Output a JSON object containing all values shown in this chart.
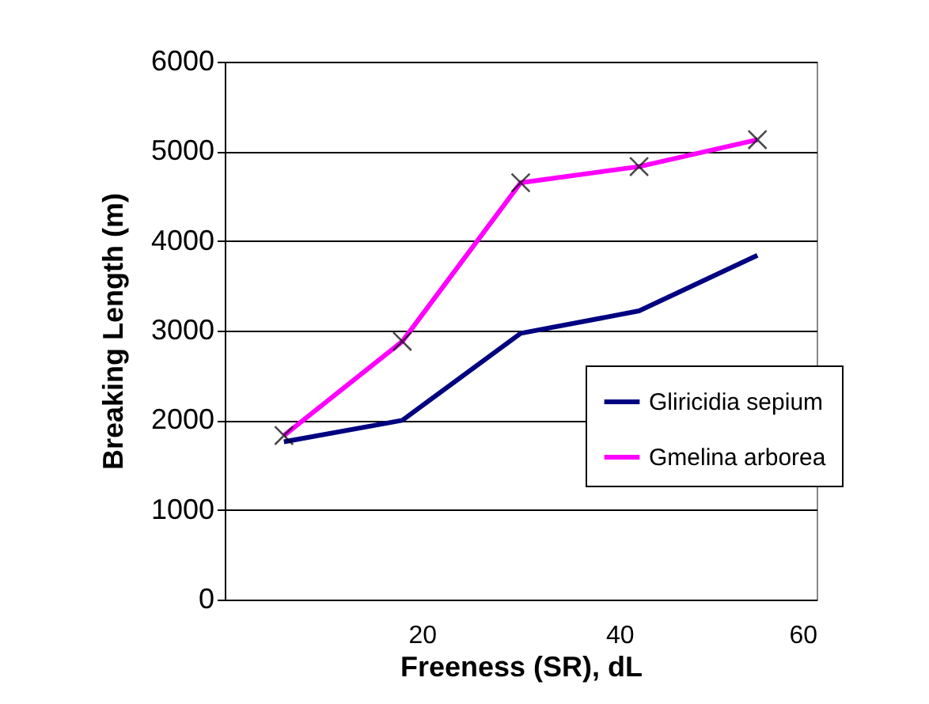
{
  "chart_data": {
    "type": "line",
    "xlabel": "Freeness (SR), dL",
    "ylabel": "Breaking Length (m)",
    "x": [
      6,
      18,
      30,
      42,
      54
    ],
    "xlim": [
      0,
      60
    ],
    "xticks": [
      20,
      40,
      60
    ],
    "ylim": [
      0,
      6000
    ],
    "yticks": [
      0,
      1000,
      2000,
      3000,
      4000,
      5000,
      6000
    ],
    "grid": "y",
    "legend": "right",
    "series": [
      {
        "name": "Gliricidia sepium",
        "color": "#000080",
        "values": [
          1760,
          2000,
          2970,
          3220,
          3840
        ],
        "marker": "none"
      },
      {
        "name": "Gmelina arborea",
        "color": "#ff00ff",
        "values": [
          1830,
          2880,
          4650,
          4830,
          5130
        ],
        "marker": "cross"
      }
    ]
  }
}
